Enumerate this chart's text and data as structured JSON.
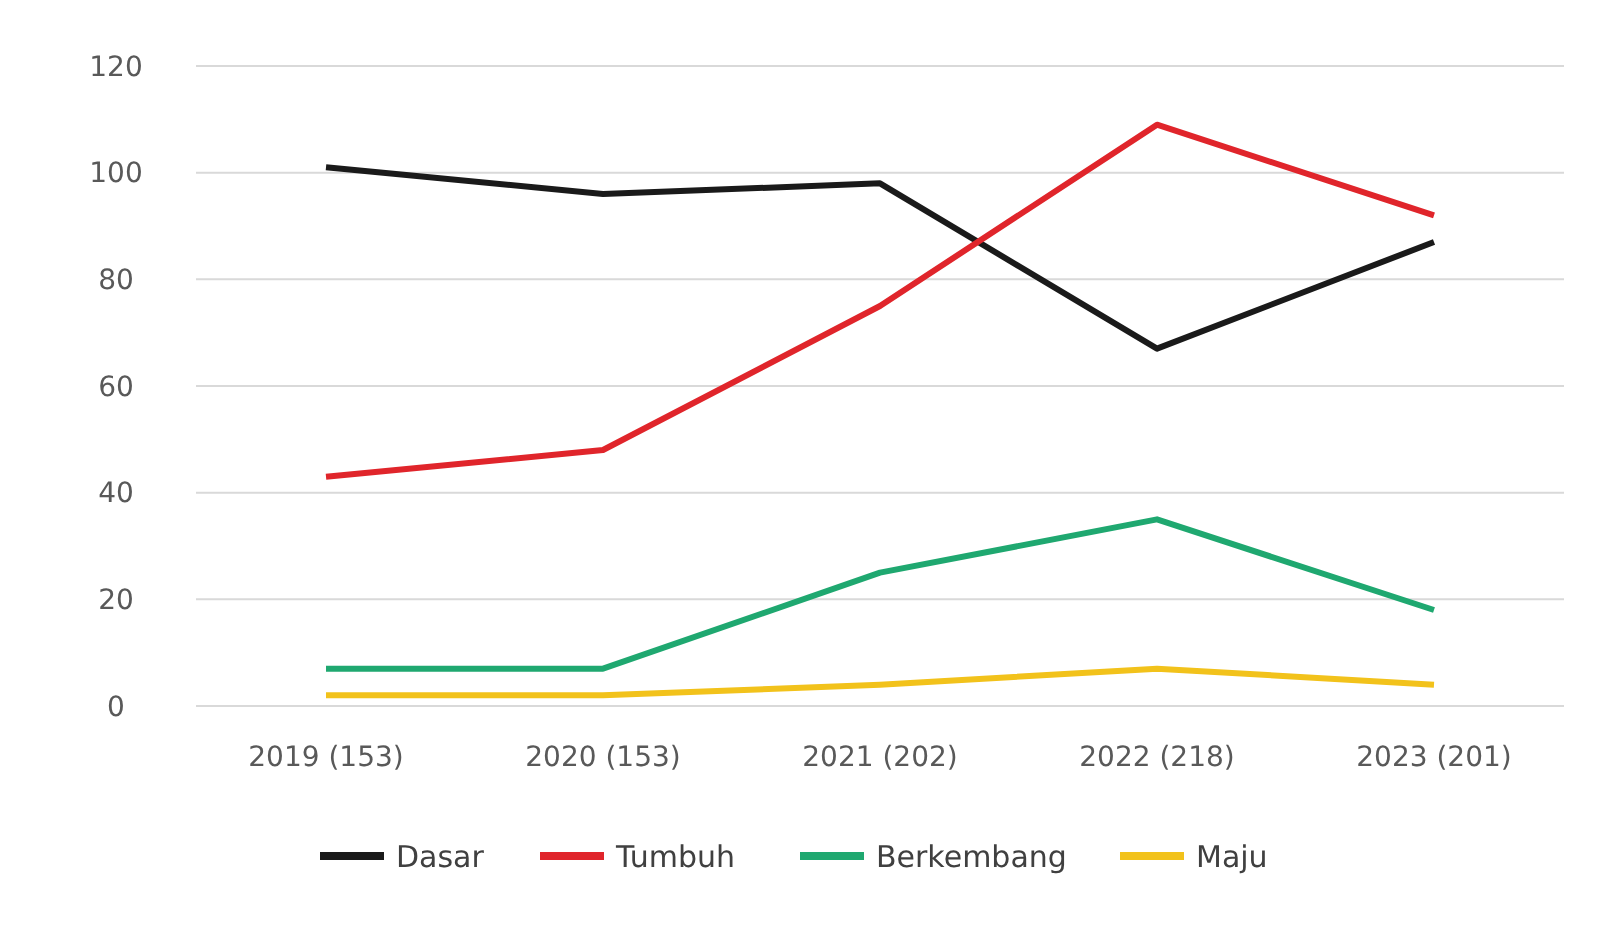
{
  "chart_data": {
    "type": "line",
    "categories": [
      "2019 (153)",
      "2020 (153)",
      "2021 (202)",
      "2022 (218)",
      "2023 (201)"
    ],
    "series": [
      {
        "name": "Dasar",
        "color": "#1a1a1a",
        "values": [
          101,
          96,
          98,
          67,
          87
        ]
      },
      {
        "name": "Tumbuh",
        "color": "#e0252b",
        "values": [
          43,
          48,
          75,
          109,
          92
        ]
      },
      {
        "name": "Berkembang",
        "color": "#1fa870",
        "values": [
          7,
          7,
          25,
          35,
          18
        ]
      },
      {
        "name": "Maju",
        "color": "#f2c21b",
        "values": [
          2,
          2,
          4,
          7,
          4
        ]
      }
    ],
    "ylim": [
      0,
      120
    ],
    "yticks": [
      0,
      20,
      40,
      60,
      80,
      100,
      120
    ],
    "grid": "y",
    "legend": "bottom",
    "line_style": "solid",
    "marker": "none"
  }
}
